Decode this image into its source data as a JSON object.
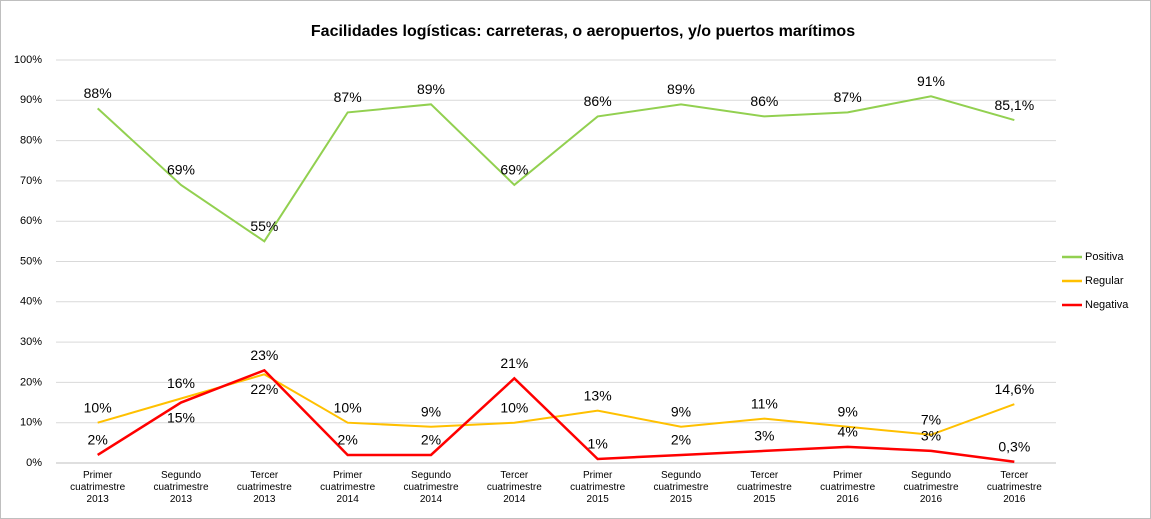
{
  "chart_data": {
    "type": "line",
    "title": "Facilidades logísticas: carreteras, o aeropuertos, y/o puertos marítimos",
    "categories": [
      [
        "Primer",
        "cuatrimestre",
        "2013"
      ],
      [
        "Segundo",
        "cuatrimestre",
        "2013"
      ],
      [
        "Tercer",
        "cuatrimestre",
        "2013"
      ],
      [
        "Primer",
        "cuatrimestre",
        "2014"
      ],
      [
        "Segundo",
        "cuatrimestre",
        "2014"
      ],
      [
        "Tercer",
        "cuatrimestre",
        "2014"
      ],
      [
        "Primer",
        "cuatrimestre",
        "2015"
      ],
      [
        "Segundo",
        "cuatrimestre",
        "2015"
      ],
      [
        "Tercer",
        "cuatrimestre",
        "2015"
      ],
      [
        "Primer",
        "cuatrimestre",
        "2016"
      ],
      [
        "Segundo",
        "cuatrimestre",
        "2016"
      ],
      [
        "Tercer",
        "cuatrimestre",
        "2016"
      ]
    ],
    "series": [
      {
        "name": "Positiva",
        "color": "#92d050",
        "values": [
          88,
          69,
          55,
          87,
          89,
          69,
          86,
          89,
          86,
          87,
          91,
          85.1
        ],
        "value_labels": [
          "88%",
          "69%",
          "55%",
          "87%",
          "89%",
          "69%",
          "86%",
          "89%",
          "86%",
          "87%",
          "91%",
          "85,1%"
        ]
      },
      {
        "name": "Regular",
        "color": "#ffc000",
        "values": [
          10,
          16,
          22,
          10,
          9,
          10,
          13,
          9,
          11,
          9,
          7,
          14.6
        ],
        "value_labels": [
          "10%",
          "16%",
          "22%",
          "10%",
          "9%",
          "10%",
          "13%",
          "9%",
          "11%",
          "9%",
          "7%",
          "14,6%"
        ]
      },
      {
        "name": "Negativa",
        "color": "#ff0000",
        "values": [
          2,
          15,
          23,
          2,
          2,
          21,
          1,
          2,
          3,
          4,
          3,
          0.3
        ],
        "value_labels": [
          "2%",
          "15%",
          "23%",
          "2%",
          "2%",
          "21%",
          "1%",
          "2%",
          "3%",
          "4%",
          "3%",
          "0,3%"
        ]
      }
    ],
    "ylim": [
      0,
      100
    ],
    "yticks": [
      {
        "value": 0,
        "label": "0%"
      },
      {
        "value": 10,
        "label": "10%"
      },
      {
        "value": 20,
        "label": "20%"
      },
      {
        "value": 30,
        "label": "30%"
      },
      {
        "value": 40,
        "label": "40%"
      },
      {
        "value": 50,
        "label": "50%"
      },
      {
        "value": 60,
        "label": "60%"
      },
      {
        "value": 70,
        "label": "70%"
      },
      {
        "value": 80,
        "label": "80%"
      },
      {
        "value": 90,
        "label": "90%"
      },
      {
        "value": 100,
        "label": "100%"
      }
    ],
    "grid": true,
    "legend": "right"
  }
}
